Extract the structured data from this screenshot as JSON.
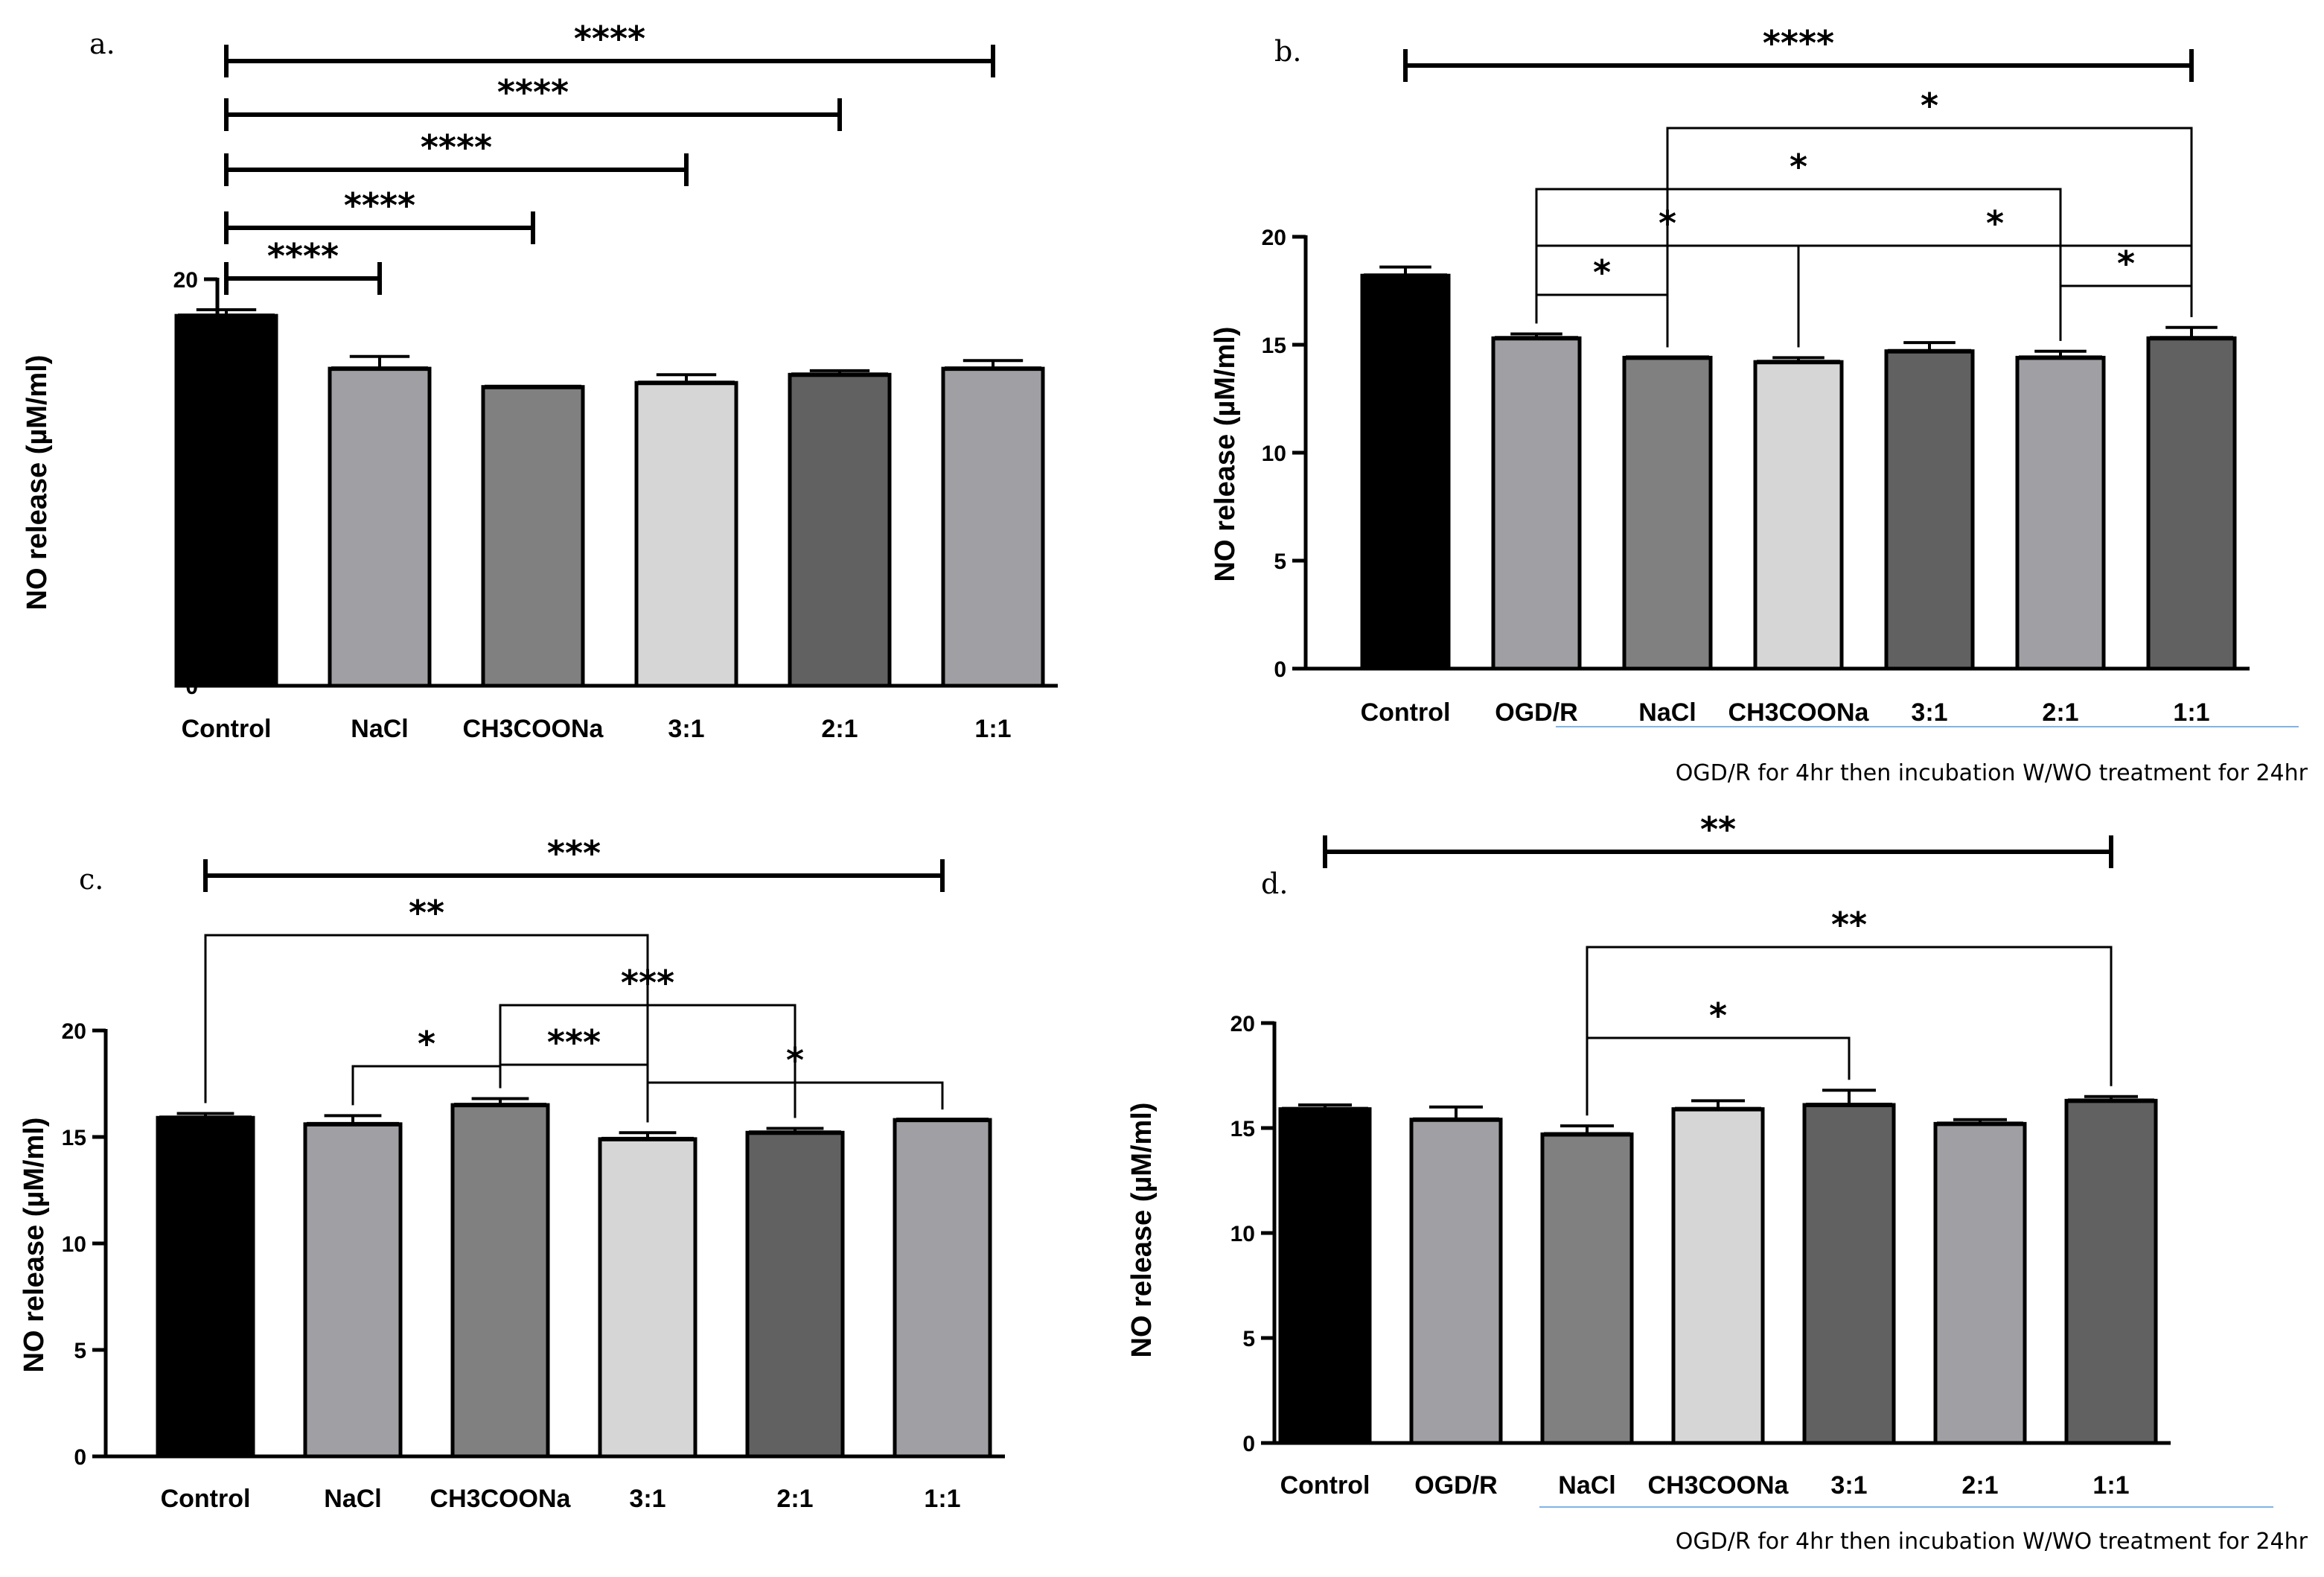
{
  "chart_data": [
    {
      "panel": "a.",
      "type": "bar",
      "ylabel": "NO release (µM/ml)",
      "ylim": [
        0,
        20
      ],
      "yticks": [
        0,
        5,
        10,
        15,
        20
      ],
      "categories": [
        "Control",
        "NaCl",
        "CH3COONa",
        "3:1",
        "2:1",
        "1:1"
      ],
      "values": [
        18.2,
        15.6,
        14.7,
        14.9,
        15.3,
        15.6
      ],
      "errors": [
        0.3,
        0.6,
        0,
        0.4,
        0.2,
        0.4
      ],
      "colors": [
        "#000000",
        "#a0a0a4",
        "#808080",
        "#d6d6d6",
        "#616161",
        "#a0a0a4"
      ],
      "comparisons": [
        {
          "from": "Control",
          "to": "1:1",
          "label": "****"
        },
        {
          "from": "Control",
          "to": "2:1",
          "label": "****"
        },
        {
          "from": "Control",
          "to": "3:1",
          "label": "****"
        },
        {
          "from": "Control",
          "to": "CH3COONa",
          "label": "****"
        },
        {
          "from": "Control",
          "to": "NaCl",
          "label": "****"
        }
      ]
    },
    {
      "panel": "b.",
      "type": "bar",
      "ylabel": "NO release (µM/ml)",
      "ylim": [
        0,
        20
      ],
      "yticks": [
        0,
        5,
        10,
        15,
        20
      ],
      "categories": [
        "Control",
        "OGD/R",
        "NaCl",
        "CH3COONa",
        "3:1",
        "2:1",
        "1:1"
      ],
      "values": [
        18.2,
        15.3,
        14.4,
        14.2,
        14.7,
        14.4,
        15.3
      ],
      "errors": [
        0.4,
        0.2,
        0,
        0.2,
        0.4,
        0.3,
        0.5
      ],
      "colors": [
        "#000000",
        "#a0a0a4",
        "#808080",
        "#d6d6d6",
        "#616161",
        "#a0a0a4",
        "#616161"
      ],
      "note": "OGD/R for 4hr then incubation W/WO treatment for 24hr",
      "comparisons": [
        {
          "from": "Control",
          "to": "1:1",
          "label": "****"
        },
        {
          "from": "NaCl",
          "to": "1:1",
          "label": "*"
        },
        {
          "from": "OGD/R",
          "to": "2:1",
          "label": "*"
        },
        {
          "from": "OGD/R",
          "to": "CH3COONa",
          "label": "*"
        },
        {
          "from": "CH3COONa",
          "to": "1:1",
          "label": "*"
        },
        {
          "from": "OGD/R",
          "to": "NaCl",
          "label": "*"
        },
        {
          "from": "2:1",
          "to": "1:1",
          "label": "*"
        }
      ]
    },
    {
      "panel": "c.",
      "type": "bar",
      "ylabel": "NO release (µM/ml)",
      "ylim": [
        0,
        20
      ],
      "yticks": [
        0,
        5,
        10,
        15,
        20
      ],
      "categories": [
        "Control",
        "NaCl",
        "CH3COONa",
        "3:1",
        "2:1",
        "1:1"
      ],
      "values": [
        15.9,
        15.6,
        16.5,
        14.9,
        15.2,
        15.8
      ],
      "errors": [
        0.2,
        0.4,
        0.3,
        0.3,
        0.2,
        0
      ],
      "colors": [
        "#000000",
        "#a0a0a4",
        "#808080",
        "#d6d6d6",
        "#616161",
        "#a0a0a4"
      ],
      "comparisons": [
        {
          "from": "Control",
          "to": "1:1",
          "label": "***"
        },
        {
          "from": "Control",
          "to": "3:1",
          "label": "**"
        },
        {
          "from": "CH3COONa",
          "to": "2:1",
          "label": "***"
        },
        {
          "from": "CH3COONa",
          "to": "3:1",
          "label": "***"
        },
        {
          "from": "NaCl",
          "to": "CH3COONa",
          "label": "*"
        },
        {
          "from": "3:1",
          "to": "1:1",
          "label": "*"
        }
      ]
    },
    {
      "panel": "d.",
      "type": "bar",
      "ylabel": "NO release (µM/ml)",
      "ylim": [
        0,
        20
      ],
      "yticks": [
        0,
        5,
        10,
        15,
        20
      ],
      "categories": [
        "Control",
        "OGD/R",
        "NaCl",
        "CH3COONa",
        "3:1",
        "2:1",
        "1:1"
      ],
      "values": [
        15.9,
        15.4,
        14.7,
        15.9,
        16.1,
        15.2,
        16.3
      ],
      "errors": [
        0.2,
        0.6,
        0.4,
        0.4,
        0.7,
        0.2,
        0.2
      ],
      "colors": [
        "#000000",
        "#a0a0a4",
        "#808080",
        "#d6d6d6",
        "#616161",
        "#a0a0a4",
        "#616161"
      ],
      "note": "OGD/R for 4hr then incubation W/WO treatment for 24hr",
      "comparisons": [
        {
          "from": "Control",
          "to": "1:1",
          "label": "**"
        },
        {
          "from": "NaCl",
          "to": "1:1",
          "label": "**"
        },
        {
          "from": "NaCl",
          "to": "3:1",
          "label": "*"
        }
      ]
    }
  ]
}
